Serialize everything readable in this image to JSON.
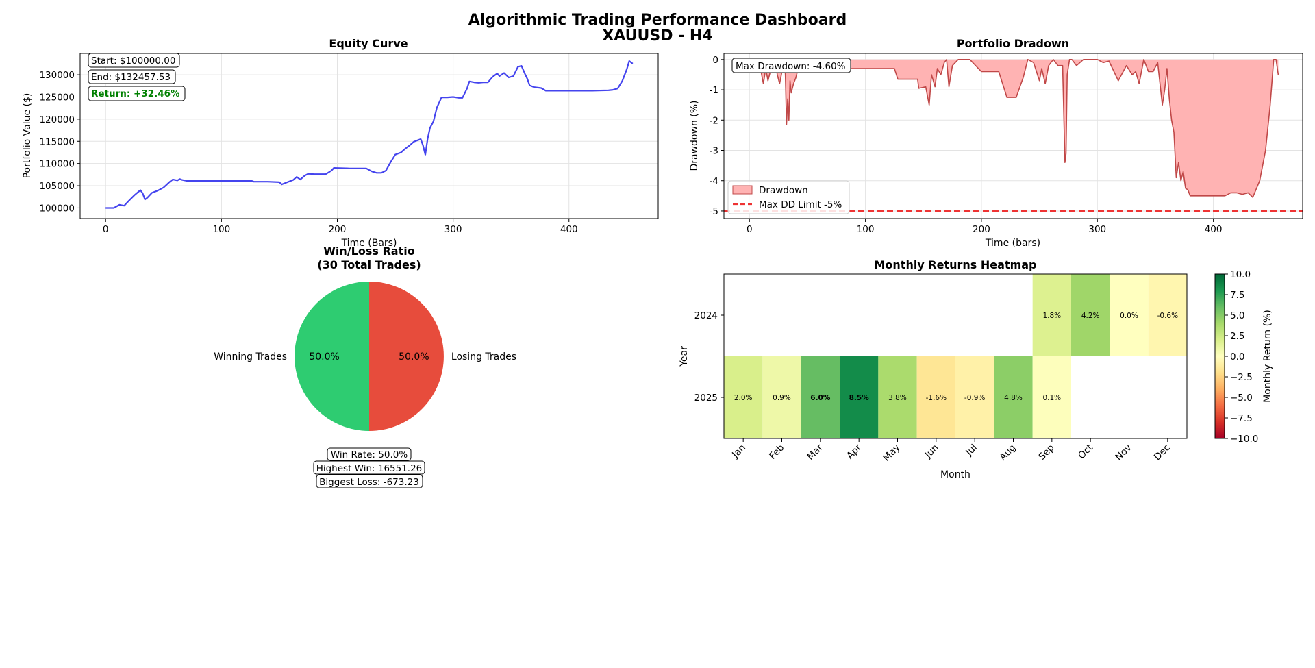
{
  "header": {
    "title": "Algorithmic Trading Performance Dashboard",
    "subtitle": "XAUUSD - H4"
  },
  "equity": {
    "title": "Equity Curve",
    "xlabel": "Time (Bars)",
    "ylabel": "Portfolio Value ($)",
    "start_label": "Start: $100000.00",
    "end_label": "End: $132457.53",
    "return_label": "Return: +32.46%",
    "return_color": "#008000",
    "line_color": "#4444ee"
  },
  "drawdown": {
    "title": "Portfolio Dradown",
    "xlabel": "Time (bars)",
    "ylabel": "Drawdown (%)",
    "max_label": "Max Drawdown: -4.60%",
    "legend": [
      "Drawdown",
      "Max DD Limit -5%"
    ],
    "fill_color": "#ffb3b3",
    "line_color": "#c04848",
    "limit_color": "#ee3333"
  },
  "pie": {
    "title_line1": "Win/Loss Ratio",
    "title_line2": "(30 Total Trades)",
    "stats": [
      "Win Rate: 50.0%",
      "Highest Win: 16551.26",
      "Biggest Loss: -673.23"
    ]
  },
  "heatmap": {
    "title": "Monthly Returns Heatmap",
    "xlabel": "Month",
    "ylabel": "Year",
    "colorbar_label": "Monthly Return (%)"
  },
  "chart_data": [
    {
      "type": "line",
      "title": "Equity Curve",
      "xlabel": "Time (Bars)",
      "ylabel": "Portfolio Value ($)",
      "xlim": [
        -22,
        477
      ],
      "ylim": [
        97600,
        134800
      ],
      "xticks": [
        0,
        100,
        200,
        300,
        400
      ],
      "yticks": [
        100000,
        105000,
        110000,
        115000,
        120000,
        125000,
        130000
      ],
      "grid": true,
      "x": [
        0,
        7,
        12,
        16,
        20,
        25,
        30,
        32,
        34,
        36,
        40,
        45,
        50,
        55,
        58,
        62,
        64,
        66,
        70,
        90,
        110,
        126,
        128,
        140,
        150,
        152,
        158,
        162,
        165,
        168,
        172,
        175,
        180,
        190,
        195,
        197,
        210,
        220,
        225,
        230,
        234,
        238,
        242,
        246,
        250,
        255,
        258,
        262,
        266,
        270,
        272,
        274,
        276,
        278,
        280,
        283,
        286,
        290,
        295,
        300,
        305,
        308,
        312,
        314,
        318,
        322,
        326,
        330,
        334,
        338,
        340,
        344,
        348,
        352,
        356,
        359,
        362,
        364,
        366,
        370,
        376,
        380,
        400,
        420,
        434,
        438,
        442,
        446,
        450,
        452,
        455
      ],
      "y": [
        100000,
        100000,
        100700,
        100500,
        101600,
        102900,
        104000,
        103300,
        101900,
        102300,
        103400,
        103900,
        104600,
        105800,
        106400,
        106200,
        106500,
        106300,
        106100,
        106100,
        106100,
        106100,
        105900,
        105900,
        105800,
        105300,
        105900,
        106300,
        107000,
        106400,
        107300,
        107700,
        107600,
        107600,
        108400,
        109000,
        108900,
        108900,
        108900,
        108200,
        107900,
        107900,
        108400,
        110300,
        112000,
        112500,
        113200,
        114000,
        114900,
        115300,
        115500,
        114100,
        112000,
        115600,
        118000,
        119500,
        122600,
        124900,
        124900,
        125000,
        124800,
        124800,
        126900,
        128500,
        128300,
        128200,
        128300,
        128300,
        129500,
        130300,
        129700,
        130400,
        129400,
        129700,
        131800,
        132000,
        130200,
        129100,
        127600,
        127200,
        127000,
        126400,
        126400,
        126400,
        126500,
        126600,
        126900,
        128600,
        131300,
        133100,
        132500
      ],
      "annotations": [
        "Start: $100000.00",
        "End: $132457.53",
        "Return: +32.46%"
      ]
    },
    {
      "type": "area",
      "title": "Portfolio Dradown",
      "xlabel": "Time (bars)",
      "ylabel": "Drawdown (%)",
      "xlim": [
        -22,
        477
      ],
      "ylim": [
        -5.25,
        0.2
      ],
      "xticks": [
        0,
        100,
        200,
        300,
        400
      ],
      "yticks": [
        0,
        -1,
        -2,
        -3,
        -4,
        -5
      ],
      "grid": true,
      "legend": [
        "Drawdown",
        "Max DD Limit -5%"
      ],
      "legend_position": "lower-left",
      "limit": -5.0,
      "x": [
        0,
        8,
        10,
        12,
        14,
        16,
        18,
        20,
        22,
        24,
        26,
        28,
        30,
        31,
        32,
        33,
        34,
        35,
        36,
        38,
        40,
        42,
        44,
        46,
        50,
        56,
        62,
        64,
        68,
        72,
        90,
        110,
        125,
        128,
        145,
        146,
        152,
        155,
        157,
        160,
        162,
        165,
        168,
        170,
        172,
        175,
        180,
        190,
        200,
        208,
        215,
        222,
        230,
        236,
        240,
        245,
        250,
        252,
        255,
        258,
        262,
        266,
        270,
        272,
        273,
        274,
        276,
        278,
        282,
        288,
        295,
        300,
        305,
        310,
        318,
        325,
        330,
        333,
        336,
        340,
        344,
        348,
        352,
        356,
        358,
        360,
        362,
        364,
        366,
        368,
        370,
        372,
        374,
        376,
        378,
        380,
        385,
        390,
        395,
        400,
        405,
        410,
        415,
        420,
        425,
        430,
        434,
        440,
        445,
        449,
        452,
        454,
        456
      ],
      "y": [
        0,
        0,
        -0.4,
        -0.8,
        -0.3,
        -0.7,
        -0.4,
        0,
        0,
        -0.5,
        -0.8,
        -0.4,
        0,
        -0.5,
        -2.15,
        -1.3,
        -2.0,
        -0.7,
        -1.1,
        -0.8,
        -0.6,
        -0.3,
        0,
        0,
        0,
        -0.1,
        0,
        -0.3,
        -0.3,
        -0.3,
        -0.3,
        -0.3,
        -0.3,
        -0.65,
        -0.65,
        -0.95,
        -0.9,
        -1.5,
        -0.5,
        -0.9,
        -0.3,
        -0.5,
        -0.1,
        0,
        -0.9,
        -0.2,
        0,
        0,
        -0.4,
        -0.4,
        -0.4,
        -1.25,
        -1.25,
        -0.6,
        0,
        -0.1,
        -0.7,
        -0.3,
        -0.8,
        -0.2,
        0,
        -0.2,
        -0.2,
        -3.4,
        -3.1,
        -0.5,
        0,
        0,
        -0.2,
        0,
        0,
        0,
        -0.1,
        -0.05,
        -0.7,
        -0.2,
        -0.5,
        -0.4,
        -0.8,
        0,
        -0.4,
        -0.4,
        -0.1,
        -1.5,
        -1.0,
        -0.3,
        -1.3,
        -2.0,
        -2.4,
        -3.9,
        -3.4,
        -4.0,
        -3.7,
        -4.25,
        -4.3,
        -4.5,
        -4.5,
        -4.5,
        -4.5,
        -4.5,
        -4.5,
        -4.5,
        -4.4,
        -4.4,
        -4.45,
        -4.4,
        -4.55,
        -4.0,
        -3.0,
        -1.5,
        0,
        0,
        -0.5
      ],
      "annotations": [
        "Max Drawdown: -4.60%"
      ]
    },
    {
      "type": "pie",
      "title": "Win/Loss Ratio\n(30 Total Trades)",
      "labels": [
        "Winning Trades",
        "Losing Trades"
      ],
      "values": [
        50.0,
        50.0
      ],
      "value_labels": [
        "50.0%",
        "50.0%"
      ],
      "colors": [
        "#2ecc71",
        "#e74c3c"
      ],
      "annotations": [
        "Win Rate: 50.0%",
        "Highest Win: 16551.26",
        "Biggest Loss: -673.23"
      ]
    },
    {
      "type": "heatmap",
      "title": "Monthly Returns Heatmap",
      "xlabel": "Month",
      "ylabel": "Year",
      "x": [
        "Jan",
        "Feb",
        "Mar",
        "Apr",
        "May",
        "Jun",
        "Jul",
        "Aug",
        "Sep",
        "Oct",
        "Nov",
        "Dec"
      ],
      "y": [
        "2024",
        "2025"
      ],
      "values": [
        [
          null,
          null,
          null,
          null,
          null,
          null,
          null,
          null,
          1.8,
          4.2,
          0.0,
          -0.6
        ],
        [
          2.0,
          0.9,
          6.0,
          8.5,
          3.8,
          -1.6,
          -0.9,
          4.8,
          0.1,
          null,
          null,
          null
        ]
      ],
      "value_labels": [
        [
          "",
          "",
          "",
          "",
          "",
          "",
          "",
          "",
          "1.8%",
          "4.2%",
          "0.0%",
          "-0.6%"
        ],
        [
          "2.0%",
          "0.9%",
          "6.0%",
          "8.5%",
          "3.8%",
          "-1.6%",
          "-0.9%",
          "4.8%",
          "0.1%",
          "",
          "",
          ""
        ]
      ],
      "colormap": "RdYlGn",
      "vmin": -10,
      "vmax": 10,
      "colorbar_ticks": [
        "10.0",
        "7.5",
        "5.0",
        "2.5",
        "0.0",
        "−2.5",
        "−5.0",
        "−7.5",
        "−10.0"
      ],
      "colorbar_label": "Monthly Return (%)"
    }
  ]
}
